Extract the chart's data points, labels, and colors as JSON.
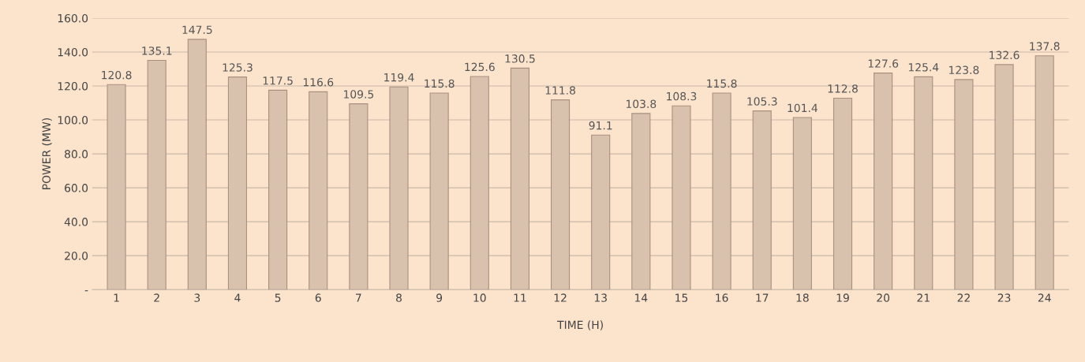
{
  "chart_data": {
    "type": "bar",
    "xlabel": "TIME (H)",
    "ylabel": "POWER (MW)",
    "categories": [
      "1",
      "2",
      "3",
      "4",
      "5",
      "6",
      "7",
      "8",
      "9",
      "10",
      "11",
      "12",
      "13",
      "14",
      "15",
      "16",
      "17",
      "18",
      "19",
      "20",
      "21",
      "22",
      "23",
      "24"
    ],
    "values": [
      120.8,
      135.1,
      147.5,
      125.3,
      117.5,
      116.6,
      109.5,
      119.4,
      115.8,
      125.6,
      130.5,
      111.8,
      91.1,
      103.8,
      108.3,
      115.8,
      105.3,
      101.4,
      112.8,
      127.6,
      125.4,
      123.8,
      132.6,
      137.8
    ],
    "color": "#d8c2ae",
    "data_labels": true,
    "grid": "y",
    "legend": false,
    "ylim": [
      0,
      160
    ],
    "yticks": [
      {
        "value": 0,
        "label": "-"
      },
      {
        "value": 20,
        "label": "20.0"
      },
      {
        "value": 40,
        "label": "40.0"
      },
      {
        "value": 60,
        "label": "60.0"
      },
      {
        "value": 80,
        "label": "80.0"
      },
      {
        "value": 100,
        "label": "100.0"
      },
      {
        "value": 120,
        "label": "120.0"
      },
      {
        "value": 140,
        "label": "140.0"
      },
      {
        "value": 160,
        "label": "160.0"
      }
    ]
  }
}
